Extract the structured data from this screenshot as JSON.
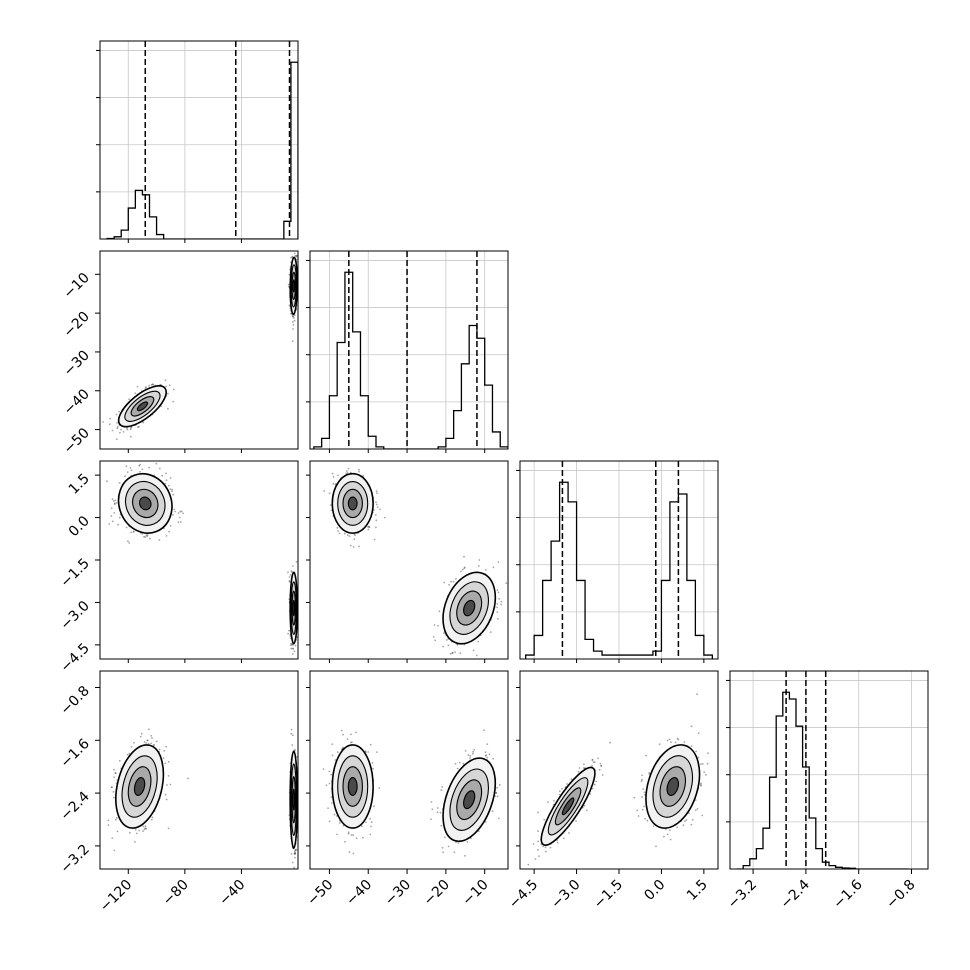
{
  "chart_data": {
    "type": "corner",
    "title": "",
    "grid": true,
    "parameters": [
      {
        "range": [
          -140,
          0
        ],
        "ticks": [
          -120,
          -80,
          -40
        ],
        "tick_labels": [
          "−120",
          "−80",
          "−40"
        ],
        "quantiles": [
          -108,
          -44,
          -6
        ]
      },
      {
        "range": [
          -55,
          -4
        ],
        "ticks": [
          -50,
          -40,
          -30,
          -20,
          -10
        ],
        "tick_labels": [
          "−50",
          "−40",
          "−30",
          "−20",
          "−10"
        ],
        "quantiles": [
          -45,
          -30,
          -12
        ]
      },
      {
        "range": [
          -5.0,
          2.0
        ],
        "ticks": [
          -4.5,
          -3.0,
          -1.5,
          0.0,
          1.5
        ],
        "tick_labels": [
          "−4.5",
          "−3.0",
          "−1.5",
          "0.0",
          "1.5"
        ],
        "quantiles": [
          -3.5,
          -0.2,
          0.6
        ]
      },
      {
        "range": [
          -3.55,
          -0.55
        ],
        "ticks": [
          -3.2,
          -2.4,
          -1.6,
          -0.8
        ],
        "tick_labels": [
          "−3.2",
          "−2.4",
          "−1.6",
          "−0.8"
        ],
        "quantiles": [
          -2.7,
          -2.4,
          -2.1
        ]
      }
    ],
    "histograms": [
      {
        "param": 0,
        "edges": [
          -135,
          -130,
          -125,
          -120,
          -115,
          -110,
          -105,
          -100,
          -95,
          -90,
          -85,
          -80,
          -75,
          -70,
          -65,
          -60,
          -55,
          -50,
          -45,
          -40,
          -35,
          -30,
          -25,
          -20,
          -15,
          -10,
          -5,
          0
        ],
        "counts": [
          0.2,
          1,
          4,
          14,
          22,
          20,
          10,
          2,
          0,
          0,
          0,
          0,
          0,
          0,
          0,
          0,
          0,
          0,
          0,
          0,
          0,
          0,
          0,
          0,
          0,
          8,
          80
        ]
      },
      {
        "param": 1,
        "edges": [
          -54,
          -52,
          -50,
          -48,
          -46,
          -44,
          -42,
          -40,
          -38,
          -36,
          -34,
          -32,
          -30,
          -28,
          -26,
          -24,
          -22,
          -20,
          -18,
          -16,
          -14,
          -12,
          -10,
          -8,
          -6,
          -4
        ],
        "counts": [
          1,
          5,
          25,
          50,
          83,
          55,
          25,
          6,
          1,
          0,
          0,
          0,
          0,
          0,
          0,
          0,
          1,
          5,
          18,
          40,
          58,
          52,
          30,
          8,
          1
        ]
      },
      {
        "param": 2,
        "edges": [
          -4.8,
          -4.5,
          -4.2,
          -3.9,
          -3.6,
          -3.3,
          -3.0,
          -2.7,
          -2.4,
          -2.1,
          -1.8,
          -1.5,
          -1.2,
          -0.9,
          -0.6,
          -0.3,
          0.0,
          0.3,
          0.6,
          0.9,
          1.2,
          1.5,
          1.8
        ],
        "counts": [
          1,
          6,
          20,
          30,
          45,
          40,
          20,
          5,
          2,
          1,
          1,
          1,
          1,
          1,
          1,
          2,
          20,
          40,
          42,
          20,
          6,
          1
        ]
      },
      {
        "param": 3,
        "edges": [
          -3.45,
          -3.35,
          -3.25,
          -3.15,
          -3.05,
          -2.95,
          -2.85,
          -2.75,
          -2.65,
          -2.55,
          -2.45,
          -2.35,
          -2.25,
          -2.15,
          -2.05,
          -1.95,
          -1.85,
          -1.75,
          -1.65,
          -1.55,
          -1.45,
          -1.35,
          -1.25,
          -1.15,
          -1.05,
          -0.95,
          -0.85
        ],
        "counts": [
          0,
          1,
          3,
          6,
          12,
          27,
          45,
          52,
          50,
          42,
          30,
          15,
          6,
          2,
          1,
          0.5,
          0.3,
          0.2,
          0,
          0,
          0,
          0,
          0,
          0,
          0,
          0
        ]
      }
    ],
    "scatter_panels": [
      {
        "x_param": 0,
        "y_param": 1,
        "modes": [
          {
            "x": -110,
            "y": -44,
            "sx": 8,
            "sy": 2.5,
            "rho": 0.7
          },
          {
            "x": -3,
            "y": -13,
            "sx": 1.2,
            "sy": 3.5,
            "rho": 0.1
          }
        ]
      },
      {
        "x_param": 0,
        "y_param": 2,
        "modes": [
          {
            "x": -108,
            "y": 0.5,
            "sx": 9,
            "sy": 0.5,
            "rho": -0.1
          },
          {
            "x": -3,
            "y": -3.2,
            "sx": 1.2,
            "sy": 0.6,
            "rho": 0.0
          }
        ]
      },
      {
        "x_param": 1,
        "y_param": 2,
        "modes": [
          {
            "x": -44,
            "y": 0.5,
            "sx": 2.5,
            "sy": 0.5,
            "rho": 0.0
          },
          {
            "x": -14,
            "y": -3.2,
            "sx": 3.2,
            "sy": 0.6,
            "rho": 0.3
          }
        ]
      },
      {
        "x_param": 0,
        "y_param": 3,
        "modes": [
          {
            "x": -112,
            "y": -2.3,
            "sx": 8,
            "sy": 0.3,
            "rho": 0.3
          },
          {
            "x": -3,
            "y": -2.5,
            "sx": 1.2,
            "sy": 0.35,
            "rho": 0.0
          }
        ]
      },
      {
        "x_param": 1,
        "y_param": 3,
        "modes": [
          {
            "x": -44,
            "y": -2.3,
            "sx": 2.5,
            "sy": 0.3,
            "rho": 0.0
          },
          {
            "x": -14,
            "y": -2.5,
            "sx": 3.2,
            "sy": 0.3,
            "rho": 0.4
          }
        ]
      },
      {
        "x_param": 2,
        "y_param": 3,
        "modes": [
          {
            "x": -3.3,
            "y": -2.6,
            "sx": 0.45,
            "sy": 0.28,
            "rho": 0.85
          },
          {
            "x": 0.4,
            "y": -2.3,
            "sx": 0.45,
            "sy": 0.3,
            "rho": 0.3
          }
        ]
      }
    ]
  }
}
